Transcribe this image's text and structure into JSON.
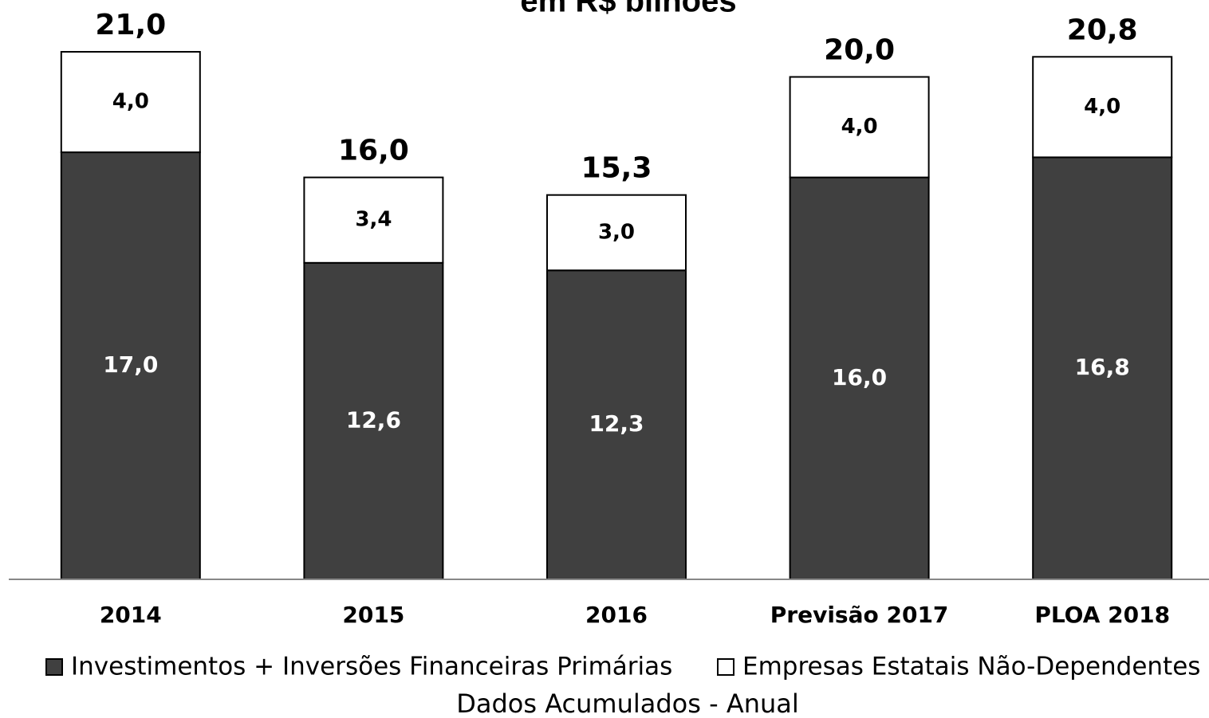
{
  "chart_data": {
    "type": "stacked_bar",
    "title": "em R$ bilhões",
    "caption": "Dados Acumulados - Anual",
    "categories": [
      "2014",
      "2015",
      "2016",
      "Previsão 2017",
      "PLOA 2018"
    ],
    "series": [
      {
        "name": "Investimentos + Inversões Financeiras Primárias",
        "color": "#404040",
        "values": [
          17.0,
          12.6,
          12.3,
          16.0,
          16.8
        ],
        "value_labels": [
          "17,0",
          "12,6",
          "12,3",
          "16,0",
          "16,8"
        ]
      },
      {
        "name": "Empresas Estatais Não-Dependentes",
        "color": "#ffffff",
        "values": [
          4.0,
          3.4,
          3.0,
          4.0,
          4.0
        ],
        "value_labels": [
          "4,0",
          "3,4",
          "3,0",
          "4,0",
          "4,0"
        ]
      }
    ],
    "totals": {
      "values": [
        21.0,
        16.0,
        15.3,
        20.0,
        20.8
      ],
      "value_labels": [
        "21,0",
        "16,0",
        "15,3",
        "20,0",
        "20,8"
      ]
    },
    "ylim": [
      0,
      21
    ]
  }
}
